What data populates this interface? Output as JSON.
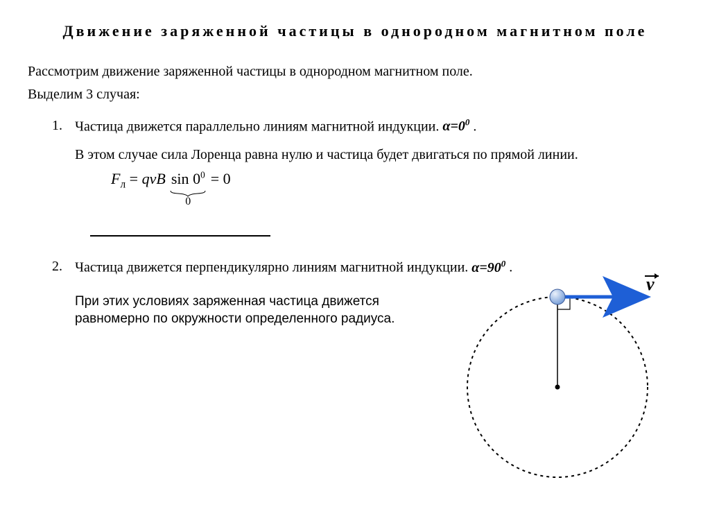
{
  "title": "Движение заряженной частицы в однородном магнитном поле",
  "intro": "Рассмотрим движение заряженной частицы в однородном магнитном поле.",
  "cases_lead": "Выделим 3 случая:",
  "case1": {
    "num": "1.",
    "text_pre": "Частица движется параллельно линиям магнитной индукции.  ",
    "alpha": "α=0",
    "sup": "0",
    "dot": " .",
    "body": "В этом случае сила Лоренца равна нулю и частица будет двигаться по прямой линии.",
    "formula": {
      "F": "F",
      "sub": "л",
      "eq1": " = ",
      "qvB": "qvB",
      "sin": "sin",
      "zero1": " 0",
      "sup0": "0",
      "brace_label": "0",
      "eq2": " = 0"
    }
  },
  "case2": {
    "num": "2.",
    "text_pre": "Частица движется перпендикулярно линиям магнитной индукции. ",
    "alpha": "α=90",
    "sup": "0",
    "dot": " .",
    "body": "При этих условиях заряженная частица движется равномерно по окружности определенного радиуса."
  },
  "diagram": {
    "circle_stroke": "#000000",
    "circle_dash": "4 5",
    "circle_r": 130,
    "arrow_color": "#1e5fd6",
    "particle_fill": "#7aa0d8",
    "vector_label": "v"
  }
}
